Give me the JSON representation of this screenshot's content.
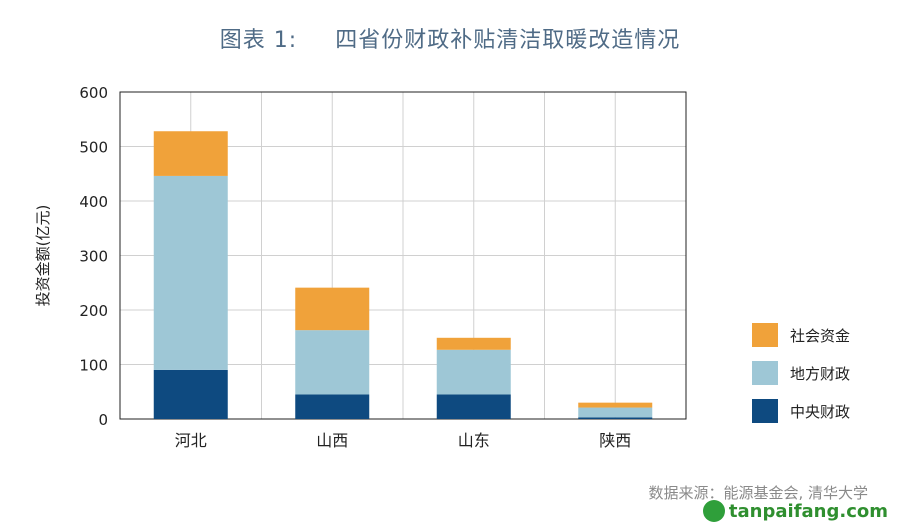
{
  "title": {
    "num": "图表 1:",
    "text": "四省份财政补贴清洁取暖改造情况"
  },
  "source": "数据来源：能源基金会, 清华大学",
  "watermark": "tanpaifang.com",
  "colors": {
    "central": "#0e4a80",
    "local": "#9ec7d6",
    "social": "#f0a23a",
    "grid": "#d0d0d0"
  },
  "chart_data": {
    "type": "bar",
    "stacked": true,
    "categories": [
      "河北",
      "山西",
      "山东",
      "陕西"
    ],
    "series": [
      {
        "name": "中央财政",
        "values": [
          90,
          45,
          45,
          3
        ],
        "color": "#0e4a80"
      },
      {
        "name": "地方财政",
        "values": [
          356,
          118,
          82,
          18
        ],
        "color": "#9ec7d6"
      },
      {
        "name": "社会资金",
        "values": [
          82,
          78,
          22,
          9
        ],
        "color": "#f0a23a"
      }
    ],
    "ylabel": "投资金额(亿元)",
    "ylim": [
      0,
      600
    ],
    "yticks": [
      0,
      100,
      200,
      300,
      400,
      500,
      600
    ],
    "grid": true,
    "legend": "right"
  }
}
